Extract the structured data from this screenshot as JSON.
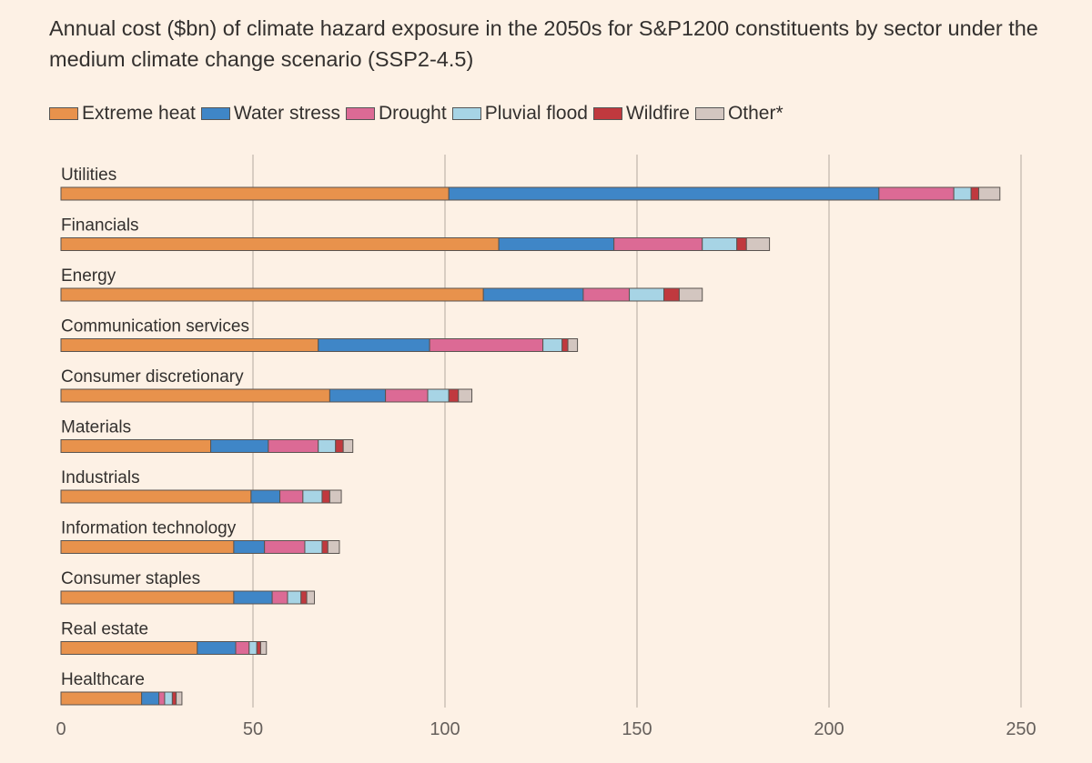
{
  "title": "Annual cost ($bn) of climate hazard exposure in the 2050s for S&P1200 constituents by sector under the medium climate change scenario (SSP2-4.5)",
  "legend": [
    {
      "name": "Extreme heat",
      "color": "#e8924c"
    },
    {
      "name": "Water stress",
      "color": "#3f86c7"
    },
    {
      "name": "Drought",
      "color": "#dc6a95"
    },
    {
      "name": "Pluvial flood",
      "color": "#a7d4e5"
    },
    {
      "name": "Wildfire",
      "color": "#c0393e"
    },
    {
      "name": "Other*",
      "color": "#d3c6c0"
    }
  ],
  "chart_data": {
    "type": "bar",
    "orientation": "horizontal",
    "stacked": true,
    "categories": [
      "Utilities",
      "Financials",
      "Energy",
      "Communication services",
      "Consumer discretionary",
      "Materials",
      "Industrials",
      "Information technology",
      "Consumer staples",
      "Real estate",
      "Healthcare"
    ],
    "series": [
      {
        "name": "Extreme heat",
        "values": [
          101,
          114,
          110,
          67,
          70,
          39,
          49.5,
          45,
          45,
          35.5,
          21
        ]
      },
      {
        "name": "Water stress",
        "values": [
          112,
          30,
          26,
          29,
          14.5,
          15,
          7.5,
          8,
          10,
          10,
          4.5
        ]
      },
      {
        "name": "Drought",
        "values": [
          19.5,
          23,
          12,
          29.5,
          11,
          13,
          6,
          10.5,
          4,
          3.5,
          1.5
        ]
      },
      {
        "name": "Pluvial flood",
        "values": [
          4.5,
          9,
          9,
          5,
          5.5,
          4.5,
          5,
          4.5,
          3.5,
          2,
          2
        ]
      },
      {
        "name": "Wildfire",
        "values": [
          2,
          2.5,
          4,
          1.5,
          2.5,
          2,
          2,
          1.5,
          1.5,
          1,
          1
        ]
      },
      {
        "name": "Other*",
        "values": [
          5.5,
          6,
          6,
          2.5,
          3.5,
          2.5,
          3,
          3,
          2,
          1.5,
          1.5
        ]
      }
    ],
    "xlim": [
      0,
      250
    ],
    "xticks": [
      0,
      50,
      100,
      150,
      200,
      250
    ],
    "grid": true,
    "legend_position": "top-left"
  }
}
